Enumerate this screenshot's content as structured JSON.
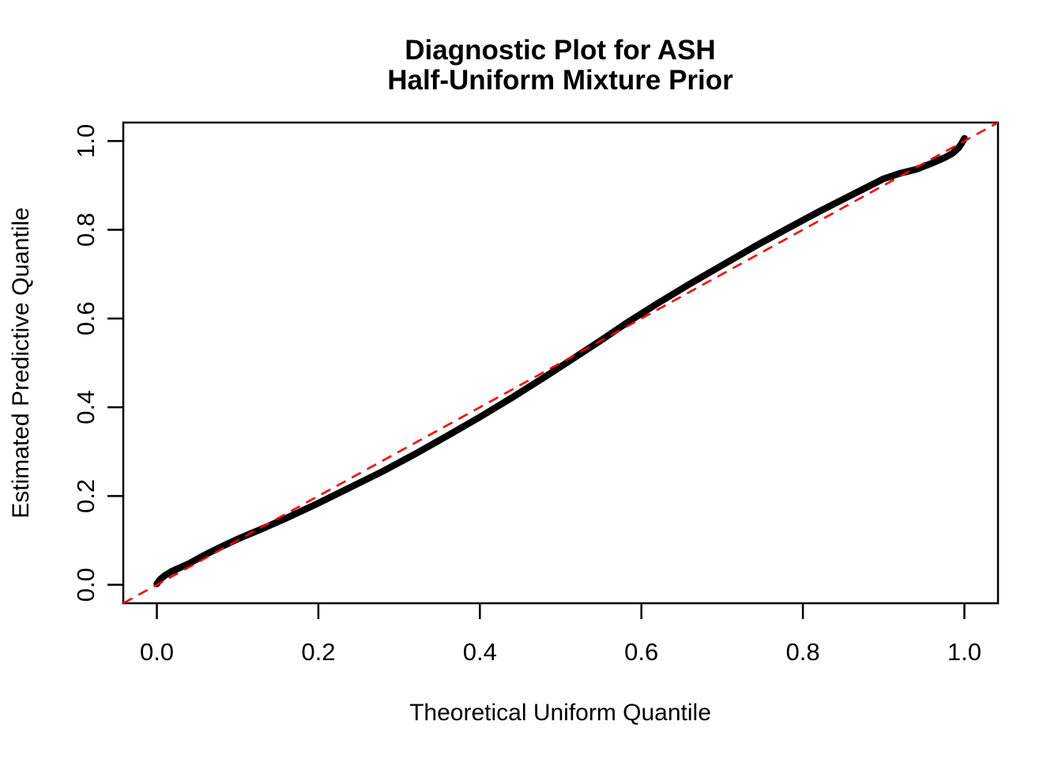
{
  "figure": {
    "title_line1": "Diagnostic Plot for ASH",
    "title_line2": "Half-Uniform Mixture Prior",
    "xlabel": "Theoretical Uniform Quantile",
    "ylabel": "Estimated Predictive Quantile"
  },
  "chart_data": {
    "type": "scatter",
    "title": "Diagnostic Plot for ASH\nHalf-Uniform Mixture Prior",
    "xlabel": "Theoretical Uniform Quantile",
    "ylabel": "Estimated Predictive Quantile",
    "xlim": [
      -0.0416,
      1.0416
    ],
    "ylim": [
      -0.0416,
      1.0416
    ],
    "grid": false,
    "legend": false,
    "x_ticks": {
      "values": [
        0.0,
        0.2,
        0.4,
        0.6,
        0.8,
        1.0
      ],
      "labels": [
        "0.0",
        "0.2",
        "0.4",
        "0.6",
        "0.8",
        "1.0"
      ]
    },
    "y_ticks": {
      "values": [
        0.0,
        0.2,
        0.4,
        0.6,
        0.8,
        1.0
      ],
      "labels": [
        "0.0",
        "0.2",
        "0.4",
        "0.6",
        "0.8",
        "1.0"
      ]
    },
    "series": [
      {
        "name": "qq-points",
        "style": "thick-solid",
        "color": "#000000",
        "points": [
          [
            0.0,
            0.002
          ],
          [
            0.004,
            0.012
          ],
          [
            0.01,
            0.021
          ],
          [
            0.018,
            0.03
          ],
          [
            0.028,
            0.038
          ],
          [
            0.04,
            0.048
          ],
          [
            0.06,
            0.068
          ],
          [
            0.08,
            0.086
          ],
          [
            0.1,
            0.103
          ],
          [
            0.13,
            0.126
          ],
          [
            0.16,
            0.15
          ],
          [
            0.2,
            0.184
          ],
          [
            0.24,
            0.22
          ],
          [
            0.28,
            0.256
          ],
          [
            0.32,
            0.295
          ],
          [
            0.36,
            0.336
          ],
          [
            0.4,
            0.378
          ],
          [
            0.44,
            0.422
          ],
          [
            0.48,
            0.468
          ],
          [
            0.52,
            0.515
          ],
          [
            0.55,
            0.551
          ],
          [
            0.58,
            0.588
          ],
          [
            0.62,
            0.634
          ],
          [
            0.66,
            0.678
          ],
          [
            0.7,
            0.72
          ],
          [
            0.74,
            0.762
          ],
          [
            0.78,
            0.802
          ],
          [
            0.82,
            0.841
          ],
          [
            0.86,
            0.878
          ],
          [
            0.9,
            0.915
          ],
          [
            0.92,
            0.927
          ],
          [
            0.94,
            0.936
          ],
          [
            0.96,
            0.95
          ],
          [
            0.975,
            0.962
          ],
          [
            0.985,
            0.972
          ],
          [
            0.993,
            0.985
          ],
          [
            0.997,
            0.996
          ],
          [
            1.0,
            1.006
          ]
        ]
      },
      {
        "name": "identity-reference-line",
        "style": "dashed",
        "color": "#FF0000",
        "points": [
          [
            -0.0416,
            -0.0416
          ],
          [
            1.0416,
            1.0416
          ]
        ]
      }
    ]
  }
}
